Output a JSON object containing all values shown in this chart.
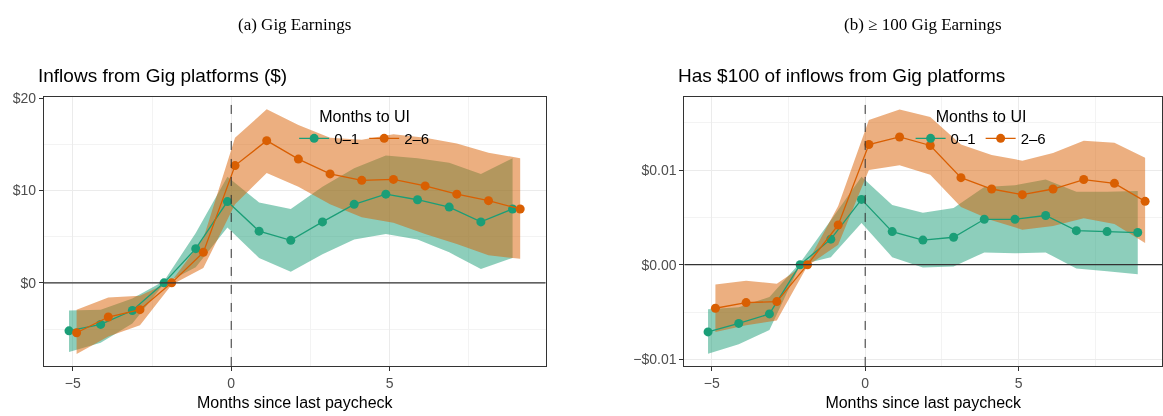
{
  "chart_data": [
    {
      "type": "line",
      "subtitle": "(a) Gig Earnings",
      "title": "Inflows from Gig platforms ($)",
      "xlabel": "Months since last paycheck",
      "legend_title": "Months to UI",
      "series": [
        {
          "name": "0–1",
          "color": "#1b9e77",
          "x": [
            -5.12,
            -4.12,
            -3.12,
            -2.12,
            -1.12,
            -0.12,
            0.88,
            1.88,
            2.88,
            3.88,
            4.88,
            5.88,
            6.88,
            7.88,
            8.88
          ],
          "values": [
            -5.2,
            -4.5,
            -3.0,
            0,
            3.7,
            8.8,
            5.6,
            4.6,
            6.6,
            8.5,
            9.6,
            9.0,
            8.2,
            6.6,
            8.0
          ],
          "lower": [
            -7.5,
            -6.5,
            -4.4,
            -0.1,
            1.7,
            6.0,
            2.7,
            1.2,
            3.1,
            4.7,
            5.3,
            4.7,
            3.3,
            1.5,
            2.7
          ],
          "upper": [
            -3.0,
            -2.9,
            -1.7,
            0.2,
            5.4,
            11.5,
            8.7,
            8.0,
            10.4,
            12.4,
            13.8,
            13.5,
            13.0,
            11.8,
            13.5
          ]
        },
        {
          "name": "2–6",
          "color": "#d95f02",
          "x": [
            -4.88,
            -3.88,
            -2.88,
            -1.88,
            -0.88,
            0.12,
            1.12,
            2.12,
            3.12,
            4.12,
            5.12,
            6.12,
            7.12,
            8.12,
            9.12
          ],
          "values": [
            -5.4,
            -3.7,
            -2.9,
            0,
            3.3,
            12.7,
            15.4,
            13.4,
            11.8,
            11.1,
            11.2,
            10.5,
            9.6,
            8.9,
            8.0
          ],
          "lower": [
            -7.7,
            -5.8,
            -4.6,
            -0.2,
            1.6,
            8.5,
            11.9,
            10.4,
            8.5,
            7.1,
            6.5,
            5.3,
            4.2,
            3.0,
            2.6
          ],
          "upper": [
            -2.9,
            -1.6,
            -1.4,
            0.2,
            4.8,
            15.7,
            18.8,
            17.1,
            15.7,
            15.5,
            16.1,
            15.7,
            15.1,
            14.1,
            13.5
          ]
        }
      ],
      "xlim": [
        -5.91,
        9.92
      ],
      "xticks": [
        -5,
        0,
        5
      ],
      "ylim": [
        -9.0,
        20.1
      ],
      "yticks": [
        {
          "value": 0,
          "label": "$0"
        },
        {
          "value": 10,
          "label": "$10"
        },
        {
          "value": 20,
          "label": "$20"
        }
      ],
      "ref_lines": [
        {
          "axis": "y",
          "value": 0,
          "line_style": "solid"
        },
        {
          "axis": "x",
          "value": 0,
          "line_style": "dashed"
        }
      ],
      "grid": true,
      "legend": "top right",
      "marker": "circle",
      "line_style": "solid"
    },
    {
      "type": "line",
      "subtitle": "(b) ≥ 100 Gig Earnings",
      "title": "Has $100 of inflows from Gig platforms",
      "xlabel": "Months since last paycheck",
      "legend_title": "Months to UI",
      "series": [
        {
          "name": "0–1",
          "color": "#1b9e77",
          "x": [
            -5.12,
            -4.12,
            -3.12,
            -2.12,
            -1.12,
            -0.12,
            0.88,
            1.88,
            2.88,
            3.88,
            4.88,
            5.88,
            6.88,
            7.88,
            8.88
          ],
          "values": [
            -0.0071,
            -0.0062,
            -0.0052,
            0,
            0.0027,
            0.0069,
            0.0035,
            0.0026,
            0.0029,
            0.0048,
            0.0048,
            0.0052,
            0.0036,
            0.0035,
            0.0034
          ],
          "lower": [
            -0.0094,
            -0.0084,
            -0.0069,
            0,
            0.0008,
            0.0044,
            0.0008,
            -0.0003,
            -0.0002,
            0.0013,
            0.0012,
            0.0013,
            -0.0004,
            -0.0007,
            -0.001
          ],
          "upper": [
            -0.0047,
            -0.0045,
            -0.0034,
            0.0002,
            0.0047,
            0.0093,
            0.0063,
            0.0055,
            0.006,
            0.0082,
            0.0084,
            0.009,
            0.0077,
            0.0077,
            0.0078
          ]
        },
        {
          "name": "2–6",
          "color": "#d95f02",
          "x": [
            -4.88,
            -3.88,
            -2.88,
            -1.88,
            -0.88,
            0.12,
            1.12,
            2.12,
            3.12,
            4.12,
            5.12,
            6.12,
            7.12,
            8.12,
            9.12
          ],
          "values": [
            -0.0046,
            -0.004,
            -0.0039,
            0,
            0.0042,
            0.0127,
            0.0135,
            0.0126,
            0.0092,
            0.008,
            0.0074,
            0.008,
            0.009,
            0.0086,
            0.0067
          ],
          "lower": [
            -0.0071,
            -0.0064,
            -0.0059,
            -0.0001,
            0.0021,
            0.01,
            0.0105,
            0.0095,
            0.0061,
            0.0047,
            0.0037,
            0.0041,
            0.0049,
            0.0043,
            0.0023
          ],
          "upper": [
            -0.0021,
            -0.0017,
            -0.002,
            0.0002,
            0.0062,
            0.0153,
            0.0164,
            0.0156,
            0.0127,
            0.0116,
            0.011,
            0.0118,
            0.0131,
            0.0129,
            0.0113
          ]
        }
      ],
      "xlim": [
        -5.89,
        9.67
      ],
      "xticks": [
        -5,
        0,
        5
      ],
      "ylim": [
        -0.0107,
        0.0177
      ],
      "yticks": [
        {
          "value": -0.01,
          "label": "−$0.01"
        },
        {
          "value": 0,
          "label": "$0.00"
        },
        {
          "value": 0.01,
          "label": "$0.01"
        }
      ],
      "ref_lines": [
        {
          "axis": "y",
          "value": 0,
          "line_style": "solid"
        },
        {
          "axis": "x",
          "value": 0,
          "line_style": "dashed"
        }
      ],
      "grid": true,
      "legend": "top right",
      "marker": "circle",
      "line_style": "solid"
    }
  ]
}
